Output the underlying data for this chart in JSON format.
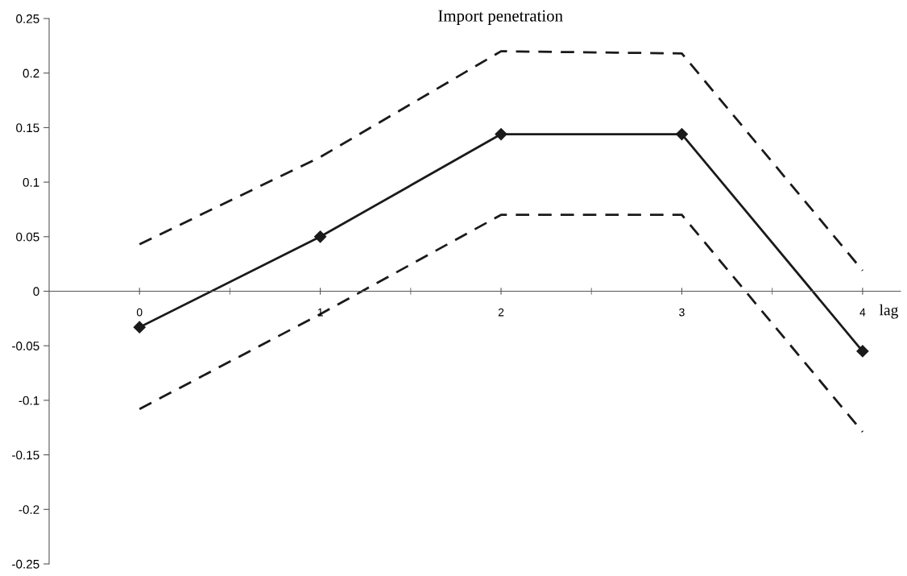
{
  "chart_data": {
    "type": "line",
    "title": "Import penetration",
    "xlabel": "lag",
    "categories": [
      "0",
      "1",
      "2",
      "3",
      "4"
    ],
    "series": [
      {
        "color": "#1a1a1a",
        "line_style": "dashed",
        "marker": "none",
        "values": [
          0.043,
          0.123,
          0.22,
          0.218,
          0.019
        ]
      },
      {
        "color": "#1a1a1a",
        "line_style": "solid",
        "marker": "diamond",
        "values": [
          -0.033,
          0.05,
          0.144,
          0.144,
          -0.055
        ]
      },
      {
        "color": "#1a1a1a",
        "line_style": "dashed",
        "marker": "none",
        "values": [
          -0.108,
          -0.021,
          0.07,
          0.07,
          -0.129
        ]
      }
    ],
    "ylim": [
      -0.25,
      0.25
    ],
    "yticks": [
      -0.25,
      -0.2,
      -0.15,
      -0.1,
      -0.05,
      0,
      0.05,
      0.1,
      0.15,
      0.2,
      0.25
    ],
    "grid": false,
    "legend": false
  }
}
